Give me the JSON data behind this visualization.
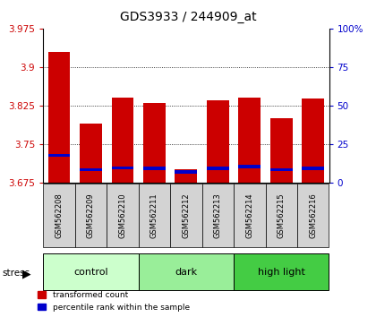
{
  "title": "GDS3933 / 244909_at",
  "samples": [
    "GSM562208",
    "GSM562209",
    "GSM562210",
    "GSM562211",
    "GSM562212",
    "GSM562213",
    "GSM562214",
    "GSM562215",
    "GSM562216"
  ],
  "red_values": [
    3.93,
    3.79,
    3.84,
    3.83,
    3.7,
    3.835,
    3.84,
    3.8,
    3.838
  ],
  "blue_values": [
    3.728,
    3.7,
    3.703,
    3.702,
    3.695,
    3.702,
    3.706,
    3.7,
    3.702
  ],
  "ymin": 3.675,
  "ymax": 3.975,
  "yticks": [
    3.675,
    3.75,
    3.825,
    3.9,
    3.975
  ],
  "right_yticks_pct": [
    0,
    25,
    50,
    75,
    100
  ],
  "right_ytick_labels": [
    "0",
    "25",
    "50",
    "75",
    "100%"
  ],
  "groups": [
    {
      "label": "control",
      "start": 0,
      "end": 3,
      "color": "#ccffcc"
    },
    {
      "label": "dark",
      "start": 3,
      "end": 6,
      "color": "#99ee99"
    },
    {
      "label": "high light",
      "start": 6,
      "end": 9,
      "color": "#44cc44"
    }
  ],
  "stress_label": "stress",
  "bar_color": "#cc0000",
  "blue_color": "#0000cc",
  "bar_width": 0.7,
  "left_axis_color": "#cc0000",
  "right_axis_color": "#0000cc",
  "grid_yticks": [
    3.75,
    3.825,
    3.9
  ],
  "blue_bar_height": 0.006
}
